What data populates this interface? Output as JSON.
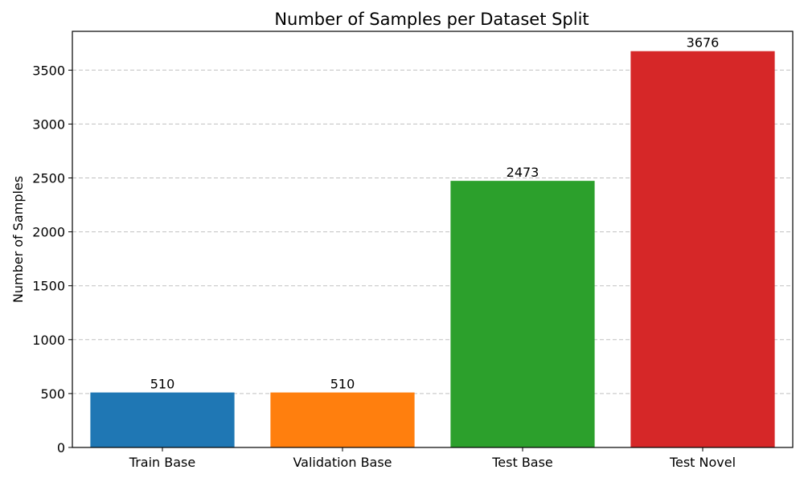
{
  "chart_data": {
    "type": "bar",
    "title": "Number of Samples per Dataset Split",
    "xlabel": "",
    "ylabel": "Number of Samples",
    "categories": [
      "Train Base",
      "Validation Base",
      "Test Base",
      "Test Novel"
    ],
    "values": [
      510,
      510,
      2473,
      3676
    ],
    "data_labels": [
      "510",
      "510",
      "2473",
      "3676"
    ],
    "colors": [
      "#1f77b4",
      "#ff7f0e",
      "#2ca02c",
      "#d62728"
    ],
    "ylim": [
      0,
      3860
    ],
    "yticks": [
      0,
      500,
      1000,
      1500,
      2000,
      2500,
      3000,
      3500
    ],
    "ytick_labels": [
      "0",
      "500",
      "1000",
      "1500",
      "2000",
      "2500",
      "3000",
      "3500"
    ],
    "grid": "y-axis dashed",
    "legend": "none"
  }
}
